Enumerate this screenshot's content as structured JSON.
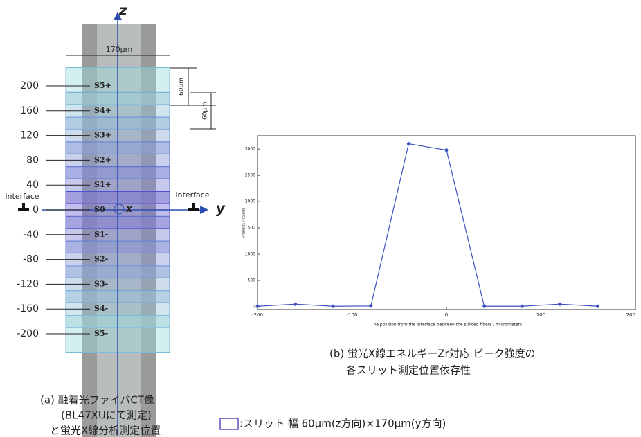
{
  "chart_data": {
    "type": "line",
    "x_label": "The position from the interface between the spliced fibers / micrometers",
    "y_label": "intensity / counts",
    "x": [
      -200,
      -160,
      -120,
      -80,
      -40,
      0,
      40,
      80,
      120,
      160
    ],
    "values": [
      10,
      50,
      10,
      15,
      3100,
      2980,
      10,
      10,
      50,
      10
    ],
    "color": "#3a4fc0",
    "xlim": [
      -200,
      200
    ],
    "ylim": [
      0,
      3200
    ],
    "xticks": [
      -200,
      -100,
      0,
      100,
      200
    ],
    "yticks": [
      0,
      500,
      1000,
      1500,
      2000,
      2500,
      3000
    ],
    "grid": false
  },
  "diagram": {
    "z_axis_label": "z",
    "y_axis_label": "y",
    "x_label": "x",
    "width_label": "170µm",
    "pitch_label_1": "60µm",
    "pitch_label_2": "60µm",
    "interface_labels": [
      "interface",
      "interface"
    ],
    "z_ticks": [
      200,
      160,
      120,
      80,
      40,
      0,
      -40,
      -80,
      -120,
      -160,
      -200
    ],
    "slits": [
      "S5+",
      "S4+",
      "S3+",
      "S2+",
      "S1+",
      "S0",
      "S1-",
      "S2-",
      "S3-",
      "S4-",
      "S5-"
    ]
  },
  "captions": {
    "a": [
      "(a) 融着光ファイバCT像",
      "(BL47XUにて測定)",
      "と蛍光X線分析測定位置"
    ],
    "b": [
      "(b) 蛍光X線エネルギーZr対応 ピーク強度の",
      "各スリット測定位置依存性"
    ],
    "legend": ":スリット 幅 60μm(z方向)×170μm(y方向)"
  }
}
